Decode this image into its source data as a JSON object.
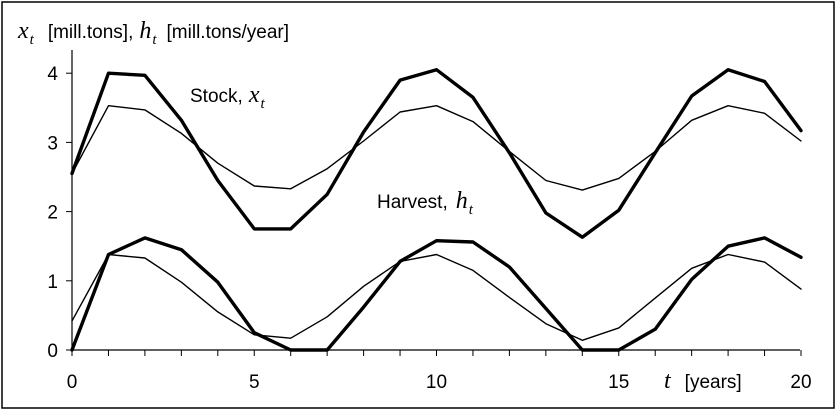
{
  "chart_data": {
    "type": "line",
    "x": [
      0,
      1,
      2,
      3,
      4,
      5,
      6,
      7,
      8,
      9,
      10,
      11,
      12,
      13,
      14,
      15,
      16,
      17,
      18,
      19,
      20
    ],
    "xlim": [
      0,
      20
    ],
    "ylim": [
      0,
      4.3
    ],
    "x_ticks": [
      0,
      5,
      10,
      15,
      20
    ],
    "y_ticks": [
      0,
      1,
      2,
      3,
      4
    ],
    "ylabel_units": {
      "stock": "[mill.tons],",
      "harvest": "[mill.tons/year]"
    },
    "xlabel_units": "[years]",
    "axis_vars": {
      "x_main": "x",
      "h_main": "h",
      "sub": "t",
      "t": "t"
    },
    "labels": {
      "stock": {
        "text": "Stock,",
        "var": "x",
        "sub": "t"
      },
      "harvest": {
        "text": "Harvest,",
        "var": "h",
        "sub": "t"
      }
    },
    "series": [
      {
        "key": "stock_bold",
        "style": "bold",
        "values": [
          2.55,
          4.0,
          3.97,
          3.32,
          2.45,
          1.75,
          1.75,
          2.25,
          3.15,
          3.9,
          4.05,
          3.65,
          2.85,
          1.98,
          1.63,
          2.02,
          2.85,
          3.67,
          4.05,
          3.88,
          3.17
        ]
      },
      {
        "key": "stock_thin",
        "style": "thin",
        "values": [
          2.55,
          3.53,
          3.47,
          3.13,
          2.7,
          2.37,
          2.33,
          2.62,
          3.02,
          3.44,
          3.53,
          3.3,
          2.87,
          2.45,
          2.31,
          2.48,
          2.87,
          3.32,
          3.53,
          3.42,
          3.02
        ]
      },
      {
        "key": "harvest_bold",
        "style": "bold",
        "values": [
          0,
          1.38,
          1.62,
          1.45,
          0.98,
          0.25,
          0,
          0,
          0.62,
          1.28,
          1.58,
          1.56,
          1.2,
          0.6,
          0,
          0,
          0.3,
          1.02,
          1.5,
          1.62,
          1.34
        ]
      },
      {
        "key": "harvest_thin",
        "style": "thin",
        "values": [
          0.42,
          1.38,
          1.33,
          0.98,
          0.55,
          0.22,
          0.17,
          0.48,
          0.92,
          1.28,
          1.38,
          1.15,
          0.76,
          0.38,
          0.14,
          0.32,
          0.75,
          1.18,
          1.38,
          1.27,
          0.88
        ]
      }
    ]
  }
}
